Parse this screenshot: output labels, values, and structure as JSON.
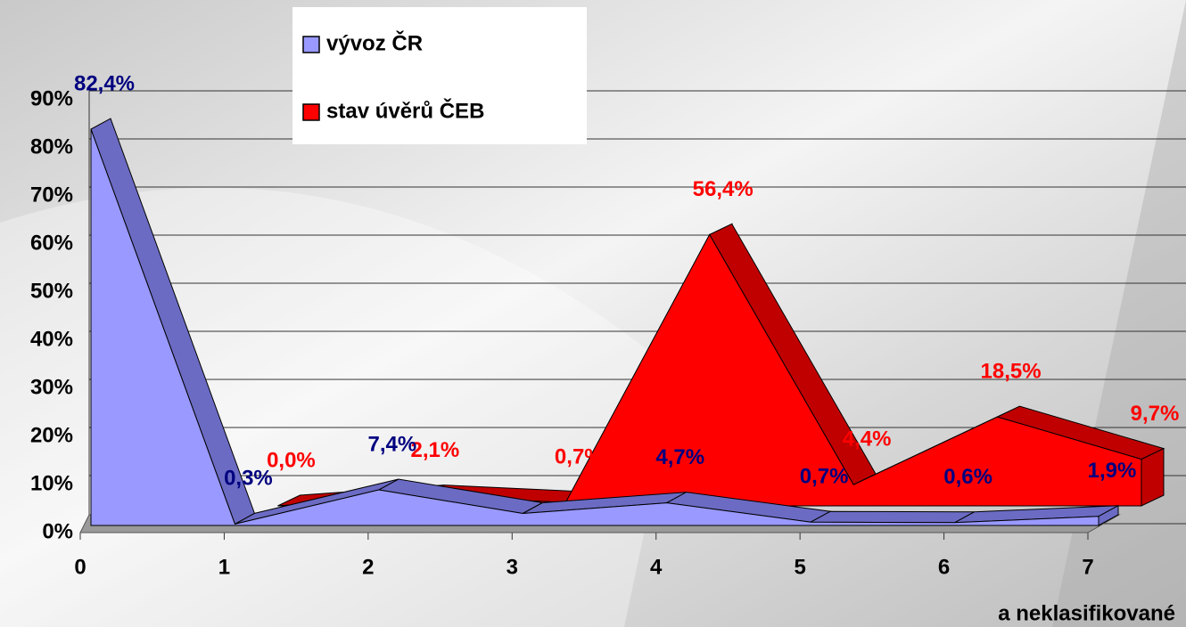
{
  "chart_data": {
    "type": "area3d",
    "categories": [
      "0",
      "1",
      "2",
      "3",
      "4",
      "5",
      "6",
      "7"
    ],
    "x_note": "a neklasifikované",
    "series": [
      {
        "name": "vývoz ČR",
        "color": "#9999ff",
        "edge_color": "#6b6bc4",
        "label_color": "#000080",
        "values": [
          82.4,
          0.3,
          7.4,
          2.5,
          4.7,
          0.7,
          0.6,
          1.9
        ],
        "value_labels": [
          "82,4%",
          "0,3%",
          "7,4%",
          null,
          "4,7%",
          "0,7%",
          "0,6%",
          "1,9%"
        ]
      },
      {
        "name": "stav úvěrů ČEB",
        "color": "#ff0000",
        "edge_color": "#c00000",
        "label_color": "#ff0000",
        "values": [
          null,
          0.0,
          2.1,
          0.7,
          56.4,
          4.4,
          18.5,
          9.7
        ],
        "value_labels": [
          null,
          "0,0%",
          "2,1%",
          "0,7%",
          "56,4%",
          "4,4%",
          "18,5%",
          "9,7%"
        ]
      }
    ],
    "ylim": [
      0,
      90
    ],
    "yticks": [
      {
        "value": 0,
        "label": "0%"
      },
      {
        "value": 10,
        "label": "10%"
      },
      {
        "value": 20,
        "label": "20%"
      },
      {
        "value": 30,
        "label": "30%"
      },
      {
        "value": 40,
        "label": "40%"
      },
      {
        "value": 50,
        "label": "50%"
      },
      {
        "value": 60,
        "label": "60%"
      },
      {
        "value": 70,
        "label": "70%"
      },
      {
        "value": 80,
        "label": "80%"
      },
      {
        "value": 90,
        "label": "90%"
      }
    ],
    "grid": true,
    "legend": "top"
  }
}
